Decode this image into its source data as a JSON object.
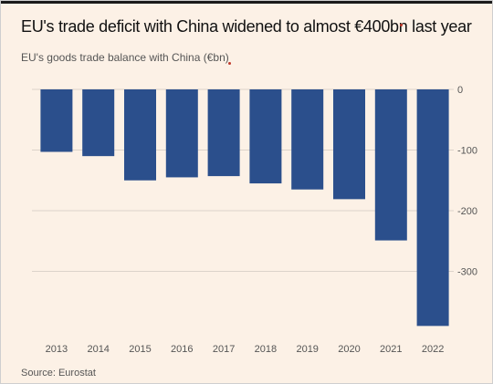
{
  "chart_data": {
    "type": "bar",
    "title": "EU's trade deficit with China widened to almost €400bn last year",
    "subtitle": "EU's goods trade balance with China (€bn)",
    "source": "Source: Eurostat",
    "categories": [
      "2013",
      "2014",
      "2015",
      "2016",
      "2017",
      "2018",
      "2019",
      "2020",
      "2021",
      "2022"
    ],
    "values": [
      -103,
      -110,
      -150,
      -145,
      -143,
      -155,
      -165,
      -181,
      -249,
      -390
    ],
    "ylim": [
      -390,
      0
    ],
    "yticks": [
      0,
      -100,
      -200,
      -300
    ],
    "ytick_labels": [
      "0",
      "-100",
      "-200",
      "-300"
    ],
    "gridlines": true,
    "bar_color": "#2b4f8c",
    "grid_color": "#dcd3ca"
  }
}
